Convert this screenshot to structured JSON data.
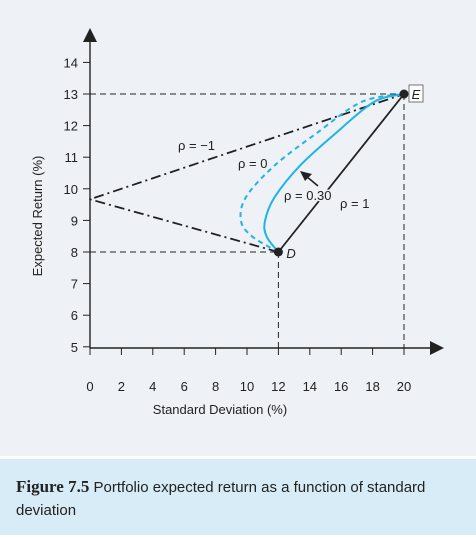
{
  "chart_data": {
    "type": "line",
    "xlabel": "Standard Deviation (%)",
    "ylabel": "Expected Return (%)",
    "xlim": [
      0,
      20
    ],
    "ylim": [
      4.5,
      14
    ],
    "x_ticks": [
      0,
      2,
      4,
      6,
      8,
      10,
      12,
      14,
      16,
      18,
      20
    ],
    "y_ticks": [
      5,
      6,
      7,
      8,
      9,
      10,
      11,
      12,
      13,
      14
    ],
    "points": [
      {
        "name": "D",
        "x": 12,
        "y": 8
      },
      {
        "name": "E",
        "x": 20,
        "y": 13
      }
    ],
    "series": [
      {
        "name": "ρ = −1",
        "style": "dash-dot",
        "color": "#222222",
        "points": [
          [
            12,
            8
          ],
          [
            0,
            9.667
          ],
          [
            20,
            13
          ]
        ]
      },
      {
        "name": "ρ = 0",
        "style": "dashed",
        "color": "#1fb4e6",
        "points": [
          [
            12,
            8
          ],
          [
            10.31,
            8.5
          ],
          [
            9.61,
            9.0
          ],
          [
            9.95,
            9.75
          ],
          [
            11.79,
            10.75
          ],
          [
            14.41,
            11.75
          ],
          [
            17.3,
            12.75
          ],
          [
            20,
            13
          ]
        ]
      },
      {
        "name": "ρ = 0.30",
        "style": "solid",
        "color": "#1fb4e6",
        "points": [
          [
            12,
            8
          ],
          [
            11.24,
            8.5
          ],
          [
            11.15,
            9.0
          ],
          [
            11.78,
            9.75
          ],
          [
            13.41,
            10.75
          ],
          [
            15.63,
            11.75
          ],
          [
            18.09,
            12.75
          ],
          [
            20,
            13
          ]
        ]
      },
      {
        "name": "ρ = 1",
        "style": "solid",
        "color": "#222222",
        "points": [
          [
            12,
            8
          ],
          [
            20,
            13
          ]
        ]
      }
    ],
    "curve_labels": [
      "ρ = −1",
      "ρ = 0",
      "ρ = 0.30",
      "ρ = 1"
    ],
    "colors": {
      "accent": "#1fb4e6",
      "ink": "#222222",
      "panel": "#eef1f5",
      "caption_bg": "#d7ecf7"
    }
  },
  "caption": {
    "label": "Figure 7.5",
    "text": "Portfolio expected return as a function of standard deviation"
  }
}
